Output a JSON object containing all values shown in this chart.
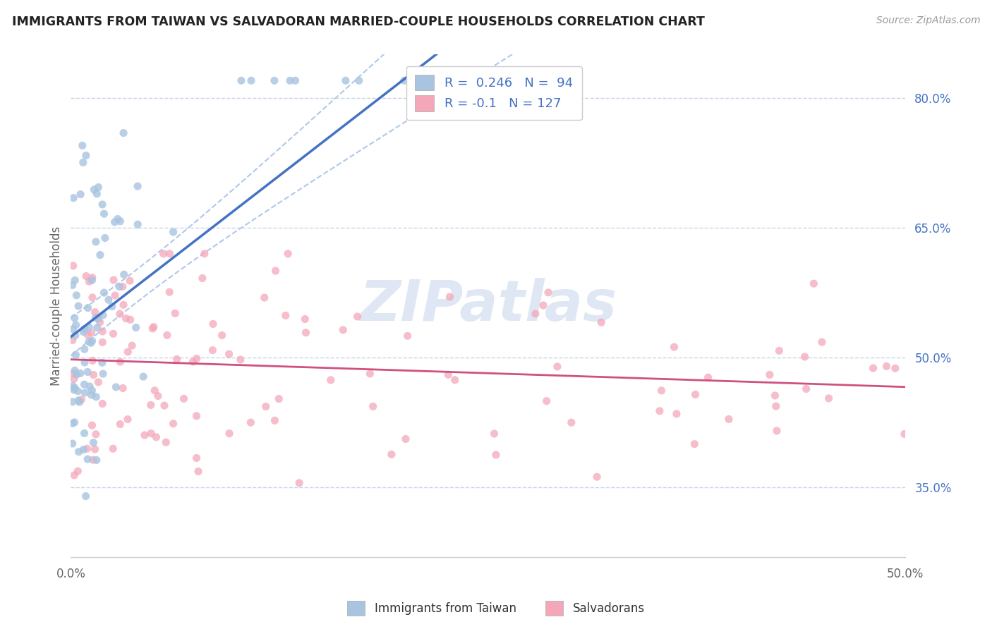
{
  "title": "IMMIGRANTS FROM TAIWAN VS SALVADORAN MARRIED-COUPLE HOUSEHOLDS CORRELATION CHART",
  "source": "Source: ZipAtlas.com",
  "ylabel": "Married-couple Households",
  "xlim": [
    0.0,
    0.5
  ],
  "ylim": [
    0.27,
    0.85
  ],
  "x_tick_positions": [
    0.0,
    0.1,
    0.2,
    0.3,
    0.4,
    0.5
  ],
  "x_tick_labels": [
    "0.0%",
    "",
    "",
    "",
    "",
    "50.0%"
  ],
  "y_ticks_right": [
    0.8,
    0.65,
    0.5,
    0.35
  ],
  "y_tick_labels_right": [
    "80.0%",
    "65.0%",
    "50.0%",
    "35.0%"
  ],
  "taiwan_R": 0.246,
  "taiwan_N": 94,
  "salvador_R": -0.1,
  "salvador_N": 127,
  "taiwan_color": "#a8c4e0",
  "salvador_color": "#f4a7b9",
  "taiwan_line_color": "#4472c4",
  "salvador_line_color": "#d05080",
  "conf_line_color": "#b0c8e8",
  "background_color": "#ffffff",
  "grid_color": "#c8d4e8",
  "watermark_color": "#c8d8ec",
  "legend_label_color": "#4472c4",
  "legend_text_color": "#333333"
}
